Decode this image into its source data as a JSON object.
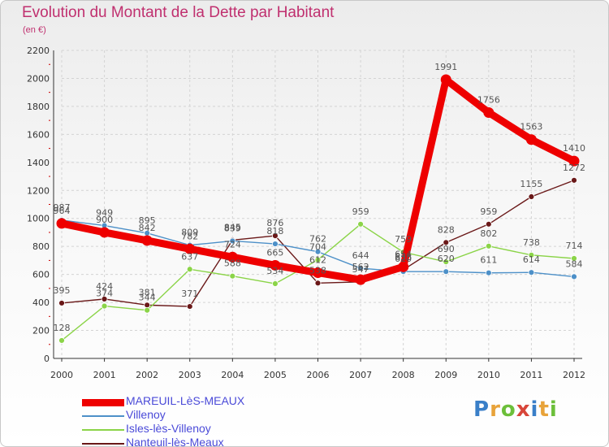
{
  "header": {
    "title": "Evolution du Montant de la Dette par Habitant",
    "unit": "(en €)"
  },
  "logo": {
    "text": "Proxiti",
    "letter_colors": [
      "#3a7fc8",
      "#e8a33a",
      "#6cbf3a",
      "#d8463a",
      "#3a7fc8",
      "#e8a33a",
      "#6cbf3a"
    ]
  },
  "chart_data": {
    "type": "line",
    "title": "Evolution du Montant de la Dette par Habitant",
    "subtitle": "(en €)",
    "xlabel": "",
    "ylabel": "",
    "x": [
      "2000",
      "2001",
      "2002",
      "2003",
      "2004",
      "2005",
      "2006",
      "2007",
      "2008",
      "2009",
      "2010",
      "2011",
      "2012"
    ],
    "ylim": [
      0,
      2200
    ],
    "yticks": [
      0,
      200,
      400,
      600,
      800,
      1000,
      1200,
      1400,
      1600,
      1800,
      2000,
      2200
    ],
    "grid": true,
    "legend_position": "bottom-left",
    "series": [
      {
        "name": "MAREUIL-LèS-MEAUX",
        "color": "#ee0000",
        "values": [
          964,
          900,
          842,
          782,
          724,
          665,
          612,
          562,
          654,
          1991,
          1756,
          1563,
          1410
        ]
      },
      {
        "name": "Villenoy",
        "color": "#4d90c8",
        "values": [
          987,
          949,
          895,
          809,
          839,
          818,
          762,
          644,
          620,
          620,
          611,
          614,
          584
        ]
      },
      {
        "name": "Isles-lès-Villenoy",
        "color": "#8bd448",
        "values": [
          128,
          374,
          344,
          637,
          588,
          534,
          704,
          959,
          759,
          690,
          802,
          738,
          714
        ]
      },
      {
        "name": "Nanteuil-lès-Meaux",
        "color": "#6a1818",
        "values": [
          395,
          424,
          381,
          371,
          845,
          876,
          538,
          547,
          633,
          828,
          959,
          1155,
          1272
        ]
      }
    ]
  }
}
